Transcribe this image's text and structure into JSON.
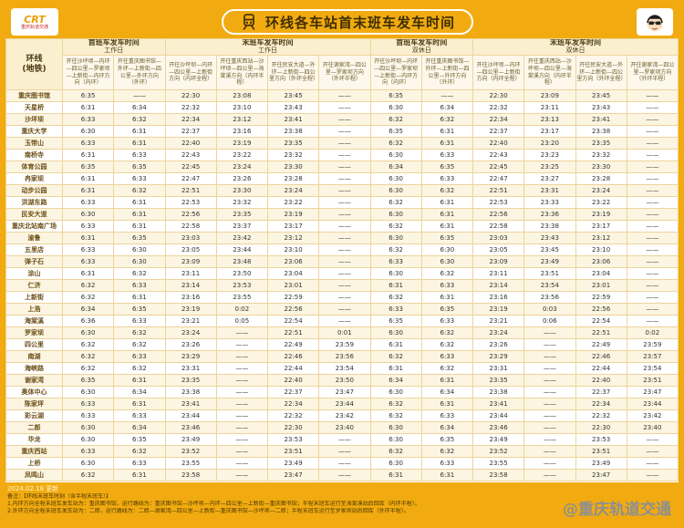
{
  "header": {
    "title": "环线各车站首末班车发车时间",
    "brand_left_mark": "CRT",
    "brand_left_text": "重庆轨道交通"
  },
  "table": {
    "line_label_top": "环线",
    "line_label_bottom": "(地铁)",
    "groups": [
      {
        "title": "首班车发车时间",
        "subtitle": "工作日",
        "cols": [
          "开往沙坪坝—内环—四公里—罗家坝—上新街—内环方向（内环）",
          "开往重庆图书馆—外环—上新街—四公里—外环方向（外环）"
        ]
      },
      {
        "title": "末班车发车时间",
        "subtitle": "工作日",
        "cols": [
          "开往沙坪坝—内环—四公里—上新街方向（内环全程）",
          "开往重庆西站—沙坪坝—四公里—海棠溪方向（内环半程）",
          "开往民安大道—外环—上新街—四公里方向（外环全程）",
          "开往谢家湾—四公里—罗家坝方向（外环半程）"
        ]
      },
      {
        "title": "首班车发车时间",
        "subtitle": "双休日",
        "cols": [
          "开往沙坪坝—内环—四公里—罗家坝—上新街—内环方向（内环）",
          "开往重庆图书馆—外环—上新街—四公里—外环方向（外环）"
        ]
      },
      {
        "title": "末班车发车时间",
        "subtitle": "双休日",
        "cols": [
          "开往沙坪坝—内环—四公里—上新街方向（内环全程）",
          "开往重庆西站—沙坪坝—四公里—海棠溪方向（内环半程）",
          "开往民安大道—外环—上新街—四公里方向（外环全程）",
          "开往谢家湾—四公里—罗家坝方向（外环半程）"
        ]
      }
    ],
    "rows": [
      {
        "station": "重庆图书馆",
        "times": [
          "6:35",
          "——",
          "22:30",
          "23:08",
          "23:45",
          "——",
          "6:35",
          "——",
          "22:30",
          "23:09",
          "23:45",
          "——"
        ]
      },
      {
        "station": "天星桥",
        "times": [
          "6:31",
          "6:34",
          "22:32",
          "23:10",
          "23:43",
          "——",
          "6:30",
          "6:34",
          "22:32",
          "23:11",
          "23:43",
          "——"
        ]
      },
      {
        "station": "沙坪坝",
        "times": [
          "6:33",
          "6:32",
          "22:34",
          "23:12",
          "23:41",
          "——",
          "6:32",
          "6:32",
          "22:34",
          "23:13",
          "23:41",
          "——"
        ]
      },
      {
        "station": "重庆大学",
        "times": [
          "6:30",
          "6:31",
          "22:37",
          "23:16",
          "23:38",
          "——",
          "6:35",
          "6:31",
          "22:37",
          "23:17",
          "23:38",
          "——"
        ]
      },
      {
        "station": "玉带山",
        "times": [
          "6:33",
          "6:31",
          "22:40",
          "23:19",
          "23:35",
          "——",
          "6:32",
          "6:31",
          "22:40",
          "23:20",
          "23:35",
          "——"
        ]
      },
      {
        "station": "南桥寺",
        "times": [
          "6:31",
          "6:33",
          "22:43",
          "23:22",
          "23:32",
          "——",
          "6:30",
          "6:33",
          "22:43",
          "23:23",
          "23:32",
          "——"
        ]
      },
      {
        "station": "体育公园",
        "times": [
          "6:35",
          "6:35",
          "22:45",
          "23:24",
          "23:30",
          "——",
          "6:34",
          "6:35",
          "22:45",
          "23:25",
          "23:30",
          "——"
        ]
      },
      {
        "station": "冉家坝",
        "times": [
          "6:31",
          "6:33",
          "22:47",
          "23:26",
          "23:28",
          "——",
          "6:30",
          "6:33",
          "22:47",
          "23:27",
          "23:28",
          "——"
        ]
      },
      {
        "station": "动步公园",
        "times": [
          "6:31",
          "6:32",
          "22:51",
          "23:30",
          "23:24",
          "——",
          "6:30",
          "6:32",
          "22:51",
          "23:31",
          "23:24",
          "——"
        ]
      },
      {
        "station": "洪湖东路",
        "times": [
          "6:33",
          "6:31",
          "22:53",
          "23:32",
          "23:22",
          "——",
          "6:32",
          "6:31",
          "22:53",
          "23:33",
          "23:22",
          "——"
        ]
      },
      {
        "station": "民安大道",
        "times": [
          "6:30",
          "6:31",
          "22:56",
          "23:35",
          "23:19",
          "——",
          "6:30",
          "6:31",
          "22:56",
          "23:36",
          "23:19",
          "——"
        ]
      },
      {
        "station": "重庆北站南广场",
        "times": [
          "6:33",
          "6:31",
          "22:58",
          "23:37",
          "23:17",
          "——",
          "6:32",
          "6:31",
          "22:58",
          "23:38",
          "23:17",
          "——"
        ]
      },
      {
        "station": "渝鲁",
        "times": [
          "6:31",
          "6:35",
          "23:03",
          "23:42",
          "23:12",
          "——",
          "6:30",
          "6:35",
          "23:03",
          "23:43",
          "23:12",
          "——"
        ]
      },
      {
        "station": "五里店",
        "times": [
          "6:33",
          "6:30",
          "23:05",
          "23:44",
          "23:10",
          "——",
          "6:32",
          "6:30",
          "23:05",
          "23:45",
          "23:10",
          "——"
        ]
      },
      {
        "station": "弹子石",
        "times": [
          "6:33",
          "6:30",
          "23:09",
          "23:48",
          "23:06",
          "——",
          "6:33",
          "6:30",
          "23:09",
          "23:49",
          "23:06",
          "——"
        ]
      },
      {
        "station": "涂山",
        "times": [
          "6:31",
          "6:32",
          "23:11",
          "23:50",
          "23:04",
          "——",
          "6:30",
          "6:32",
          "23:11",
          "23:51",
          "23:04",
          "——"
        ]
      },
      {
        "station": "仁济",
        "times": [
          "6:32",
          "6:33",
          "23:14",
          "23:53",
          "23:01",
          "——",
          "6:31",
          "6:33",
          "23:14",
          "23:54",
          "23:01",
          "——"
        ]
      },
      {
        "station": "上新街",
        "times": [
          "6:32",
          "6:31",
          "23:16",
          "23:55",
          "22:59",
          "——",
          "6:32",
          "6:31",
          "23:16",
          "23:56",
          "22:59",
          "——"
        ]
      },
      {
        "station": "上浩",
        "times": [
          "6:34",
          "6:35",
          "23:19",
          "0:02",
          "22:56",
          "——",
          "6:33",
          "6:35",
          "23:19",
          "0:03",
          "22:56",
          "——"
        ]
      },
      {
        "station": "海棠溪",
        "times": [
          "6:36",
          "6:33",
          "23:21",
          "0:05",
          "22:54",
          "——",
          "6:35",
          "6:33",
          "23:21",
          "0:06",
          "22:54",
          "——"
        ]
      },
      {
        "station": "罗家坝",
        "times": [
          "6:30",
          "6:32",
          "23:24",
          "——",
          "22:51",
          "0:01",
          "6:30",
          "6:32",
          "23:24",
          "——",
          "22:51",
          "0:02"
        ]
      },
      {
        "station": "四公里",
        "times": [
          "6:32",
          "6:32",
          "23:26",
          "——",
          "22:49",
          "23:59",
          "6:31",
          "6:32",
          "23:26",
          "——",
          "22:49",
          "23:59"
        ]
      },
      {
        "station": "南湖",
        "times": [
          "6:32",
          "6:33",
          "23:29",
          "——",
          "22:46",
          "23:56",
          "6:32",
          "6:33",
          "23:29",
          "——",
          "22:46",
          "23:57"
        ]
      },
      {
        "station": "海峡路",
        "times": [
          "6:32",
          "6:32",
          "23:31",
          "——",
          "22:44",
          "23:54",
          "6:31",
          "6:32",
          "23:31",
          "——",
          "22:44",
          "23:54"
        ]
      },
      {
        "station": "谢家湾",
        "times": [
          "6:35",
          "6:31",
          "23:35",
          "——",
          "22:40",
          "23:50",
          "6:34",
          "6:31",
          "23:35",
          "——",
          "22:40",
          "23:51"
        ]
      },
      {
        "station": "奥体中心",
        "times": [
          "6:30",
          "6:34",
          "23:38",
          "——",
          "22:37",
          "23:47",
          "6:30",
          "6:34",
          "23:38",
          "——",
          "22:37",
          "23:47"
        ]
      },
      {
        "station": "陈家坪",
        "times": [
          "6:33",
          "6:31",
          "23:41",
          "——",
          "22:34",
          "23:44",
          "6:32",
          "6:31",
          "23:41",
          "——",
          "22:34",
          "23:44"
        ]
      },
      {
        "station": "彩云湖",
        "times": [
          "6:33",
          "6:33",
          "23:44",
          "——",
          "22:32",
          "23:42",
          "6:32",
          "6:33",
          "23:44",
          "——",
          "22:32",
          "23:42"
        ]
      },
      {
        "station": "二郎",
        "times": [
          "6:30",
          "6:34",
          "23:46",
          "——",
          "22:30",
          "23:40",
          "6:30",
          "6:34",
          "23:46",
          "——",
          "22:30",
          "23:40"
        ]
      },
      {
        "station": "华龙",
        "times": [
          "6:30",
          "6:35",
          "23:49",
          "——",
          "23:53",
          "——",
          "6:30",
          "6:35",
          "23:49",
          "——",
          "23:53",
          "——"
        ]
      },
      {
        "station": "重庆西站",
        "times": [
          "6:33",
          "6:32",
          "23:52",
          "——",
          "23:51",
          "——",
          "6:32",
          "6:32",
          "23:52",
          "——",
          "23:51",
          "——"
        ]
      },
      {
        "station": "上桥",
        "times": [
          "6:30",
          "6:33",
          "23:55",
          "——",
          "23:49",
          "——",
          "6:30",
          "6:33",
          "23:55",
          "——",
          "23:49",
          "——"
        ]
      },
      {
        "station": "凤鸣山",
        "times": [
          "6:32",
          "6:31",
          "23:58",
          "——",
          "23:47",
          "——",
          "6:31",
          "6:31",
          "23:58",
          "——",
          "23:47",
          "——"
        ]
      }
    ]
  },
  "footer": {
    "updated": "2024.02.18 更新",
    "note_title": "备注：【环线末班车时刻（含半程末班车）】",
    "note1": "1.内环方向全程末班车发车站为：重庆图书馆，运行路线为：重庆图书馆—沙坪坝—内环—四公里—上新街—重庆图书馆；半程末班车运行至海棠溪站后回库（内环半程）。",
    "note2": "2.外环方向全程末班车发车站为：二郎，运行路线为：二郎—谢家湾—四公里—上新街—重庆图书馆—沙坪坝—二郎；半程末班车运行至罗家坝站后回库（外环半程）。",
    "watermark": "@重庆轨道交通"
  }
}
